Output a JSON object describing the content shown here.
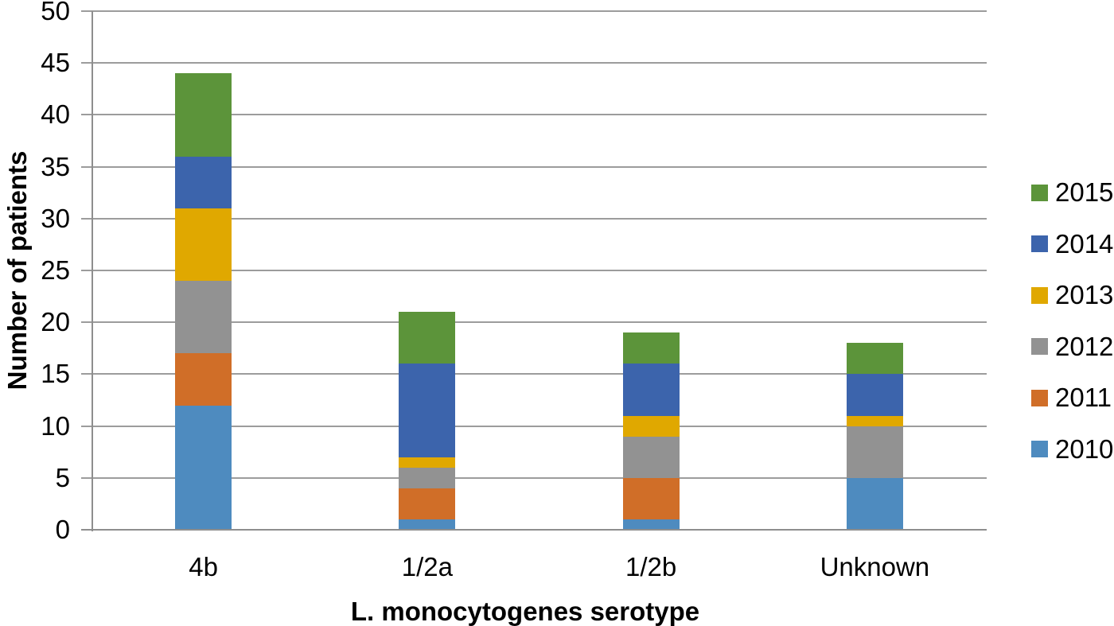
{
  "chart_data": {
    "type": "bar",
    "stacked": true,
    "title": "",
    "xlabel": "L. monocytogenes serotype",
    "ylabel": "Number of patients",
    "categories": [
      "4b",
      "1/2a",
      "1/2b",
      "Unknown"
    ],
    "series": [
      {
        "name": "2010",
        "color": "#4E8BBF",
        "values": [
          12,
          1,
          1,
          5
        ]
      },
      {
        "name": "2011",
        "color": "#D06E28",
        "values": [
          5,
          3,
          4,
          0
        ]
      },
      {
        "name": "2012",
        "color": "#929292",
        "values": [
          7,
          2,
          4,
          5
        ]
      },
      {
        "name": "2013",
        "color": "#E0A800",
        "values": [
          7,
          1,
          2,
          1
        ]
      },
      {
        "name": "2014",
        "color": "#3C64AC",
        "values": [
          5,
          9,
          5,
          4
        ]
      },
      {
        "name": "2015",
        "color": "#5C943A",
        "values": [
          8,
          5,
          3,
          3
        ]
      }
    ],
    "category_totals": [
      44,
      21,
      19,
      18
    ],
    "ylim": [
      0,
      50
    ],
    "ytick_step": 5,
    "ytick_labels": [
      "0",
      "5",
      "10",
      "15",
      "20",
      "25",
      "30",
      "35",
      "40",
      "45",
      "50"
    ],
    "grid": true,
    "legend_position": "right",
    "legend_order_top_to_bottom": [
      "2015",
      "2014",
      "2013",
      "2012",
      "2011",
      "2010"
    ]
  },
  "style": {
    "gridline_color": "#9C9C9C",
    "axis_line_color": "#8E8E8E",
    "background_color": "#FFFFFF",
    "text_color": "#000000"
  }
}
